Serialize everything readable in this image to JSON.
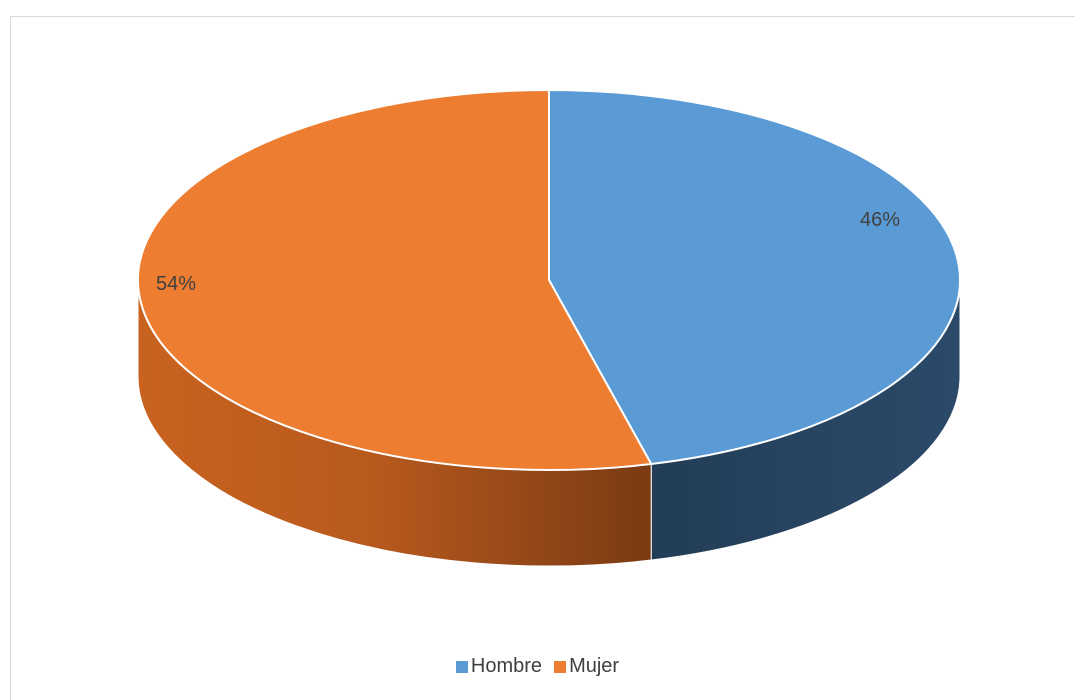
{
  "chart_data": {
    "type": "pie",
    "categories": [
      "Hombre",
      "Mujer"
    ],
    "values": [
      46,
      54
    ],
    "data_labels": [
      "46%",
      "54%"
    ],
    "colors": [
      "#5b9bd5",
      "#ed7d31"
    ],
    "legend_placement": "bottom"
  }
}
